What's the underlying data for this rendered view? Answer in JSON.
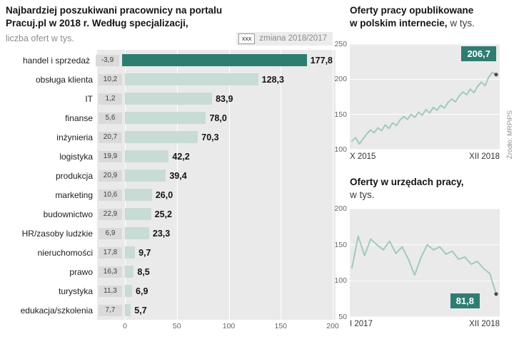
{
  "header": {
    "title_line1": "Najbardziej poszukiwani pracownicy na portalu",
    "title_line2": "Pracuj.pl w 2018 r. Według specjalizacji,",
    "subtitle": "liczba ofert w tys.",
    "legend_box": "xxx",
    "legend_label": "zmiana 2018/2017"
  },
  "rt1": {
    "line1": "Oferty pracy opublikowane",
    "line2_bold": "w polskim internecie,",
    "line2_light": "w tys."
  },
  "rt2": {
    "line1": "Oferty w urzędach pracy,",
    "line2": "w tys."
  },
  "source": "Źródło: MRPiPS",
  "colors": {
    "accent_dark_teal": "#2e7d71",
    "bar_light_teal": "#c7dcd4",
    "line_teal": "#9fcabe",
    "plot_background": "#eaeaea",
    "change_box_gray": "#dadada"
  },
  "chart_data": [
    {
      "type": "bar",
      "title": "Najbardziej poszukiwani pracownicy na portalu Pracuj.pl w 2018 r. Według specjalizacji, liczba ofert w tys.",
      "legend": "xxx = zmiana 2018/2017",
      "categories": [
        "handel i sprzedaż",
        "obsługa klienta",
        "IT",
        "finanse",
        "inżynieria",
        "logistyka",
        "produkcja",
        "marketing",
        "budownictwo",
        "HR/zasoby ludzkie",
        "nieruchomości",
        "prawo",
        "turystyka",
        "edukacja/szkolenia"
      ],
      "values": [
        177.8,
        128.3,
        83.9,
        78.0,
        70.3,
        42.2,
        39.4,
        26.0,
        25.2,
        23.3,
        9.7,
        8.5,
        6.9,
        5.7
      ],
      "value_labels": [
        "177,8",
        "128,3",
        "83,9",
        "78,0",
        "70,3",
        "42,2",
        "39,4",
        "26,0",
        "25,2",
        "23,3",
        "9,7",
        "8,5",
        "6,9",
        "5,7"
      ],
      "change_2018_2017": [
        -3.9,
        10.2,
        1.2,
        5.6,
        20.7,
        19.9,
        20.9,
        10.6,
        22.9,
        6.9,
        17.8,
        16.3,
        11.3,
        7.7
      ],
      "change_labels": [
        "-3,9",
        "10,2",
        "1,2",
        "5,6",
        "20,7",
        "19,9",
        "20,9",
        "10,6",
        "22,9",
        "6,9",
        "17,8",
        "16,3",
        "11,3",
        "7,7"
      ],
      "xlim": [
        0,
        200
      ],
      "x_ticks": [
        0,
        50,
        100,
        150,
        200
      ],
      "x_tick_labels": [
        "0",
        "50",
        "100",
        "150",
        "200"
      ]
    },
    {
      "type": "line",
      "title": "Oferty pracy opublikowane w polskim internecie, w tys.",
      "x_start": "X 2015",
      "x_end": "XII 2018",
      "ylim": [
        100,
        250
      ],
      "y_ticks": [
        250,
        200,
        150,
        100
      ],
      "end_value": 206.7,
      "end_label": "206,7",
      "values": [
        112,
        117,
        108,
        115,
        122,
        128,
        124,
        131,
        127,
        135,
        130,
        138,
        134,
        142,
        147,
        143,
        150,
        146,
        153,
        149,
        157,
        152,
        160,
        156,
        163,
        159,
        167,
        172,
        168,
        176,
        182,
        178,
        186,
        181,
        190,
        196,
        191,
        203,
        210,
        206.7
      ]
    },
    {
      "type": "line",
      "title": "Oferty w urzędach pracy, w tys.",
      "x_start": "I 2017",
      "x_end": "XII 2018",
      "ylim": [
        50,
        200
      ],
      "y_ticks": [
        200,
        150,
        100,
        50
      ],
      "end_value": 81.8,
      "end_label": "81,8",
      "values": [
        118,
        162,
        135,
        158,
        150,
        143,
        155,
        138,
        147,
        130,
        108,
        132,
        150,
        143,
        147,
        137,
        141,
        130,
        133,
        123,
        127,
        117,
        110,
        81.8
      ]
    }
  ]
}
